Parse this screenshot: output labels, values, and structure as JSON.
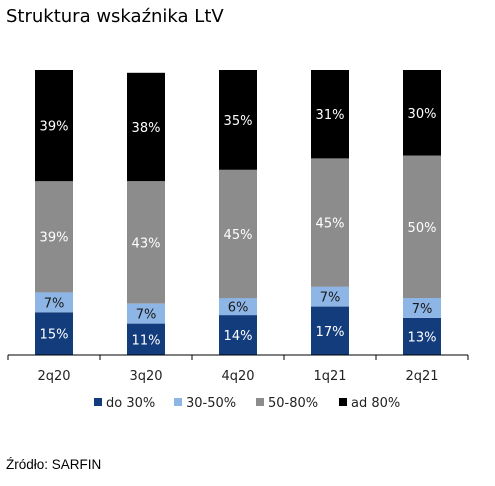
{
  "title": "Struktura wskaźnika LtV",
  "source": "Źródło: SARFIN",
  "colors": {
    "do_30": "#123c7c",
    "30_50": "#8db5e5",
    "50_80": "#8c8c8c",
    "ad_80": "#000000"
  },
  "chart_data": {
    "type": "bar",
    "stacked": true,
    "categories": [
      "2q20",
      "3q20",
      "4q20",
      "1q21",
      "2q21"
    ],
    "series": [
      {
        "name": "do 30%",
        "values": [
          15,
          11,
          14,
          17,
          13
        ],
        "color": "#123c7c",
        "label_color": "#ffffff"
      },
      {
        "name": "30-50%",
        "values": [
          7,
          7,
          6,
          7,
          7
        ],
        "color": "#8db5e5",
        "label_color": "#1a1a1a"
      },
      {
        "name": "50-80%",
        "values": [
          39,
          43,
          45,
          45,
          50
        ],
        "color": "#8c8c8c",
        "label_color": "#ffffff"
      },
      {
        "name": "ad 80%",
        "values": [
          39,
          38,
          35,
          31,
          30
        ],
        "color": "#000000",
        "label_color": "#ffffff"
      }
    ],
    "value_suffix": "%",
    "ylim": [
      0,
      100
    ],
    "legend": "bottom",
    "grid": false
  }
}
